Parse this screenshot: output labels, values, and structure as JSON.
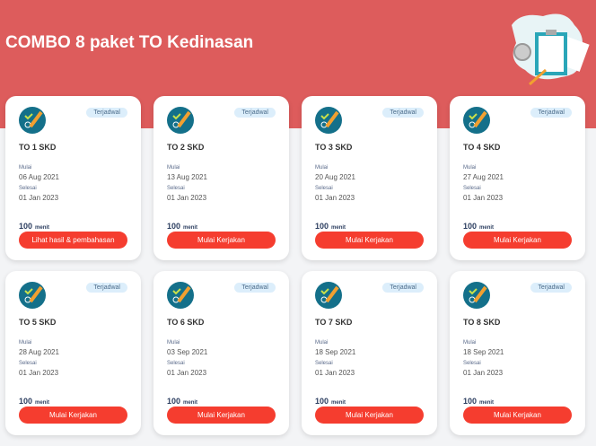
{
  "page": {
    "title": "COMBO 8 paket TO Kedinasan"
  },
  "labels": {
    "start": "Mulai",
    "end": "Selesai",
    "unit": "menit"
  },
  "colors": {
    "header": "#dd5c5c",
    "button": "#f53d2f",
    "badge": "#dceefb"
  },
  "cards": [
    {
      "name": "TO 1 SKD",
      "status": "Terjadwal",
      "start": "06 Aug 2021",
      "end": "01 Jan 2023",
      "duration": "100",
      "button": "Lihat hasil & pembahasan"
    },
    {
      "name": "TO 2 SKD",
      "status": "Terjadwal",
      "start": "13 Aug 2021",
      "end": "01 Jan 2023",
      "duration": "100",
      "button": "Mulai Kerjakan"
    },
    {
      "name": "TO 3 SKD",
      "status": "Terjadwal",
      "start": "20 Aug 2021",
      "end": "01 Jan 2023",
      "duration": "100",
      "button": "Mulai Kerjakan"
    },
    {
      "name": "TO 4 SKD",
      "status": "Terjadwal",
      "start": "27 Aug 2021",
      "end": "01 Jan 2023",
      "duration": "100",
      "button": "Mulai Kerjakan"
    },
    {
      "name": "TO 5 SKD",
      "status": "Terjadwal",
      "start": "28 Aug 2021",
      "end": "01 Jan 2023",
      "duration": "100",
      "button": "Mulai Kerjakan"
    },
    {
      "name": "TO 6 SKD",
      "status": "Terjadwal",
      "start": "03 Sep 2021",
      "end": "01 Jan 2023",
      "duration": "100",
      "button": "Mulai Kerjakan"
    },
    {
      "name": "TO 7 SKD",
      "status": "Terjadwal",
      "start": "18 Sep 2021",
      "end": "01 Jan 2023",
      "duration": "100",
      "button": "Mulai Kerjakan"
    },
    {
      "name": "TO 8 SKD",
      "status": "Terjadwal",
      "start": "18 Sep 2021",
      "end": "01 Jan 2023",
      "duration": "100",
      "button": "Mulai Kerjakan"
    }
  ]
}
